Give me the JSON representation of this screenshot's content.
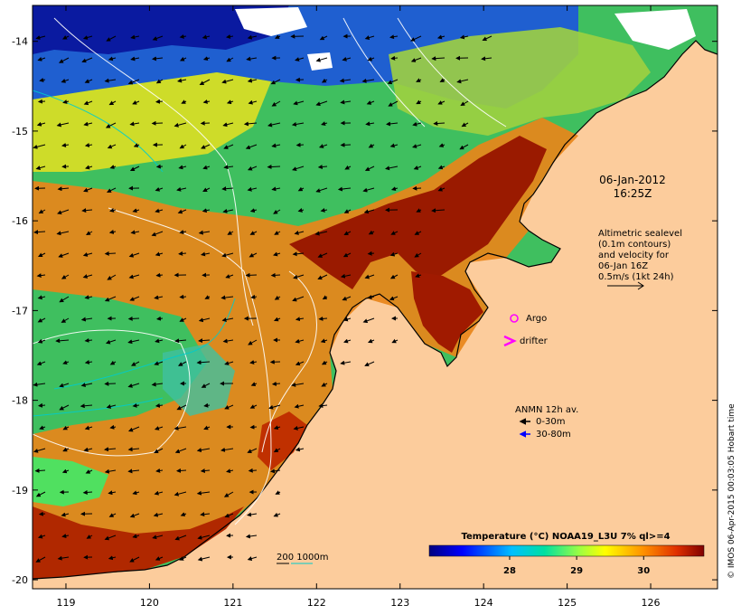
{
  "map": {
    "x_ticks": [
      "119",
      "120",
      "121",
      "122",
      "123",
      "124",
      "125",
      "126"
    ],
    "y_ticks": [
      "-14",
      "-15",
      "-16",
      "-17",
      "-18",
      "-19",
      "-20"
    ],
    "lon_range": [
      118.6,
      126.8
    ],
    "lat_range": [
      -20.1,
      -13.6
    ]
  },
  "annotations": {
    "date": "06-Jan-2012",
    "time": "16:25Z",
    "altimetric_lines": [
      "Altimetric sealevel",
      "(0.1m contours)",
      "and velocity for",
      "06-Jan 16Z",
      "0.5m/s (1kt 24h)"
    ],
    "argo_label": "Argo",
    "drifter_label": "drifter",
    "anmn_title": "ANMN 12h av.",
    "anmn_shallow": "0-30m",
    "anmn_deep": "30-80m",
    "depth_label": "200  1000m"
  },
  "colorbar": {
    "title": "Temperature (°C) NOAA19_L3U 7% ql>=4",
    "ticks": [
      "28",
      "29",
      "30"
    ],
    "range": [
      26.8,
      30.9
    ]
  },
  "credit": "© IMOS 06-Apr-2015 00:03:05 Hobart time",
  "colors": {
    "land": "#fccc9c",
    "anmn_shallow": "#000000",
    "anmn_deep": "#0000ff",
    "argo": "#ff00ff",
    "drifter": "#ff00ff",
    "depth_200": "#000000",
    "depth_1000": "#00cccc"
  }
}
